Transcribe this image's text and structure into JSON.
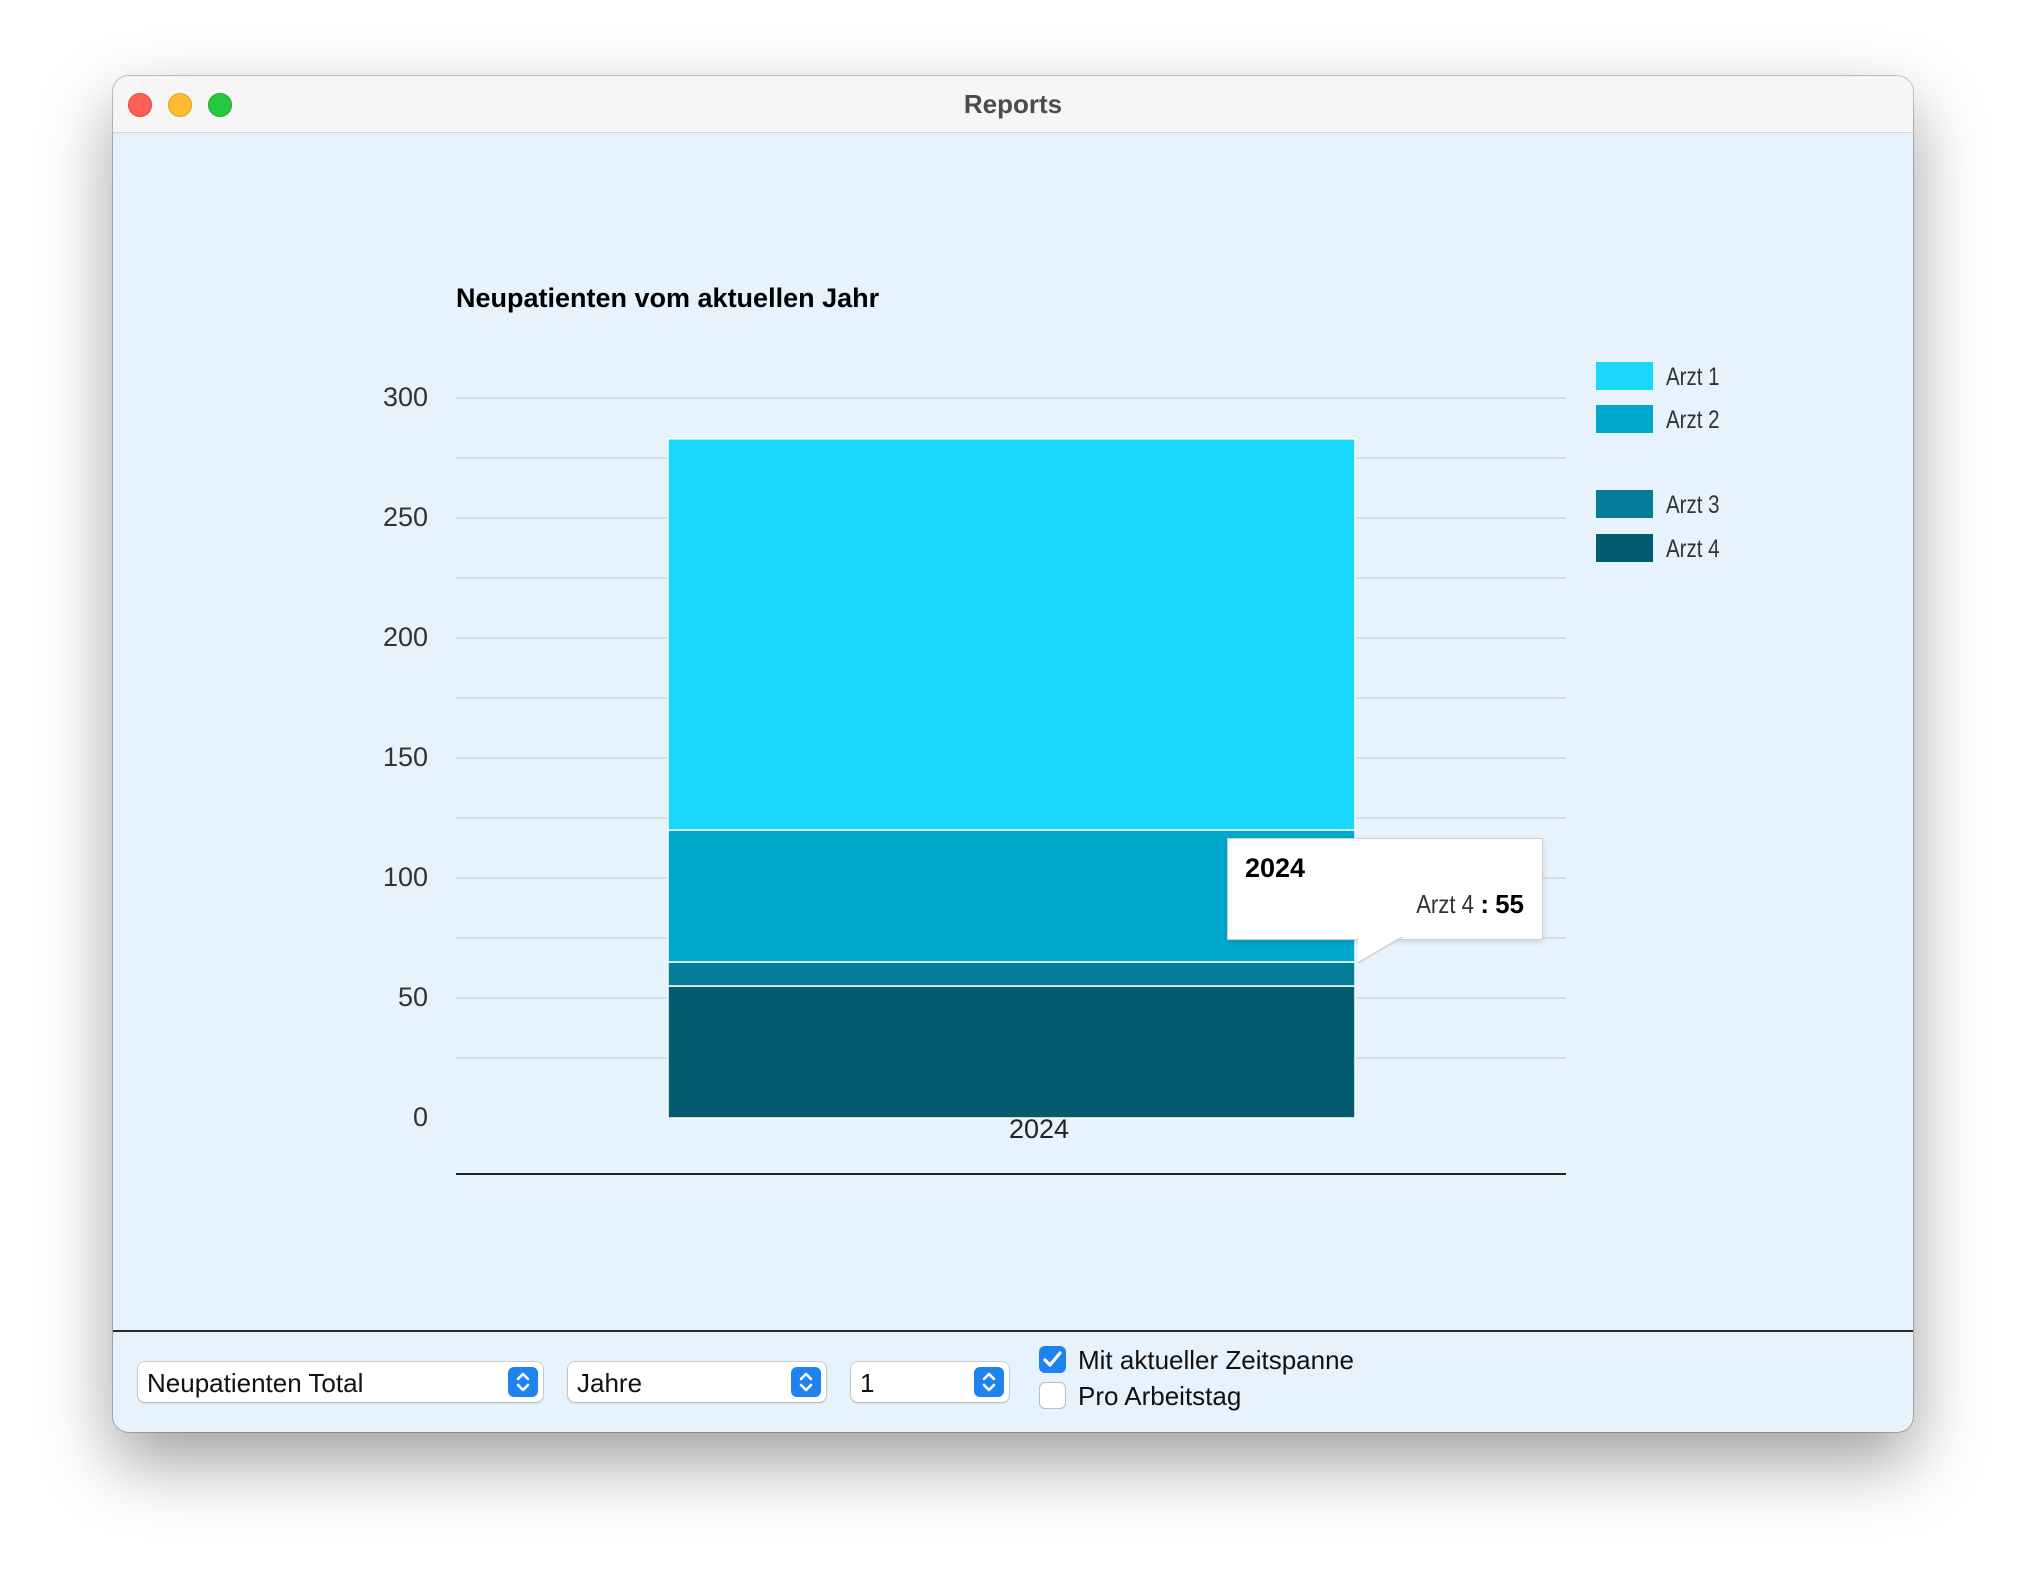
{
  "window": {
    "title": "Reports"
  },
  "chart_data": {
    "type": "bar",
    "stacked": true,
    "title": "Neupatienten vom aktuellen Jahr",
    "categories": [
      "2024"
    ],
    "series": [
      {
        "name": "Arzt 1",
        "values": [
          163
        ],
        "color": "#1ad8fb"
      },
      {
        "name": "Arzt 2",
        "values": [
          55
        ],
        "color": "#00a8cc"
      },
      {
        "name": "Arzt 3",
        "values": [
          10
        ],
        "color": "#047d98"
      },
      {
        "name": "Arzt 4",
        "values": [
          55
        ],
        "color": "#035b70"
      }
    ],
    "ylim": [
      0,
      300
    ],
    "yticks": [
      0,
      50,
      100,
      150,
      200,
      250,
      300
    ],
    "grid": true,
    "legend": "right"
  },
  "tooltip": {
    "title": "2024",
    "series": "Arzt 4",
    "separator": ":",
    "value": "55"
  },
  "controls": {
    "metric": {
      "value": "Neupatienten Total"
    },
    "unit": {
      "value": "Jahre"
    },
    "count": {
      "value": "1"
    },
    "current_period": {
      "label": "Mit aktueller Zeitspanne",
      "checked": true
    },
    "per_workday": {
      "label": "Pro Arbeitstag",
      "checked": false
    }
  }
}
